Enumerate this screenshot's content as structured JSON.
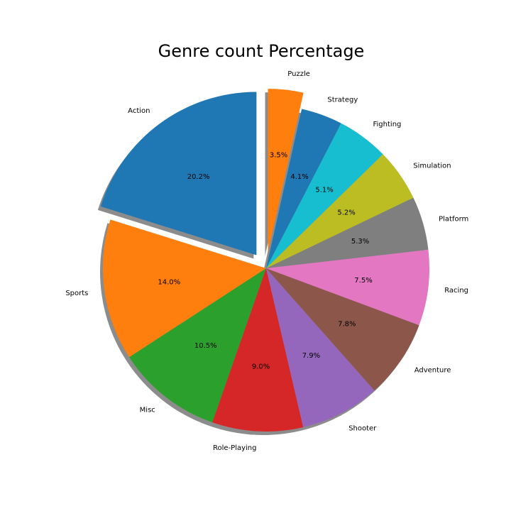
{
  "chart_data": {
    "type": "pie",
    "title": "Genre count Percentage",
    "slices": [
      {
        "label": "Action",
        "value": 20.2,
        "pct_label": "20.2%",
        "color": "#1f77b4",
        "exploded": true
      },
      {
        "label": "Sports",
        "value": 14.0,
        "pct_label": "14.0%",
        "color": "#ff7f0e",
        "exploded": false
      },
      {
        "label": "Misc",
        "value": 10.5,
        "pct_label": "10.5%",
        "color": "#2ca02c",
        "exploded": false
      },
      {
        "label": "Role-Playing",
        "value": 9.0,
        "pct_label": "9.0%",
        "color": "#d62728",
        "exploded": false
      },
      {
        "label": "Shooter",
        "value": 7.9,
        "pct_label": "7.9%",
        "color": "#9467bd",
        "exploded": false
      },
      {
        "label": "Adventure",
        "value": 7.8,
        "pct_label": "7.8%",
        "color": "#8c564b",
        "exploded": false
      },
      {
        "label": "Racing",
        "value": 7.5,
        "pct_label": "7.5%",
        "color": "#e377c2",
        "exploded": false
      },
      {
        "label": "Platform",
        "value": 5.3,
        "pct_label": "5.3%",
        "color": "#7f7f7f",
        "exploded": false
      },
      {
        "label": "Simulation",
        "value": 5.2,
        "pct_label": "5.2%",
        "color": "#bcbd22",
        "exploded": false
      },
      {
        "label": "Fighting",
        "value": 5.1,
        "pct_label": "5.1%",
        "color": "#17becf",
        "exploded": false
      },
      {
        "label": "Strategy",
        "value": 4.1,
        "pct_label": "4.1%",
        "color": "#1f77b4",
        "exploded": false
      },
      {
        "label": "Puzzle",
        "value": 3.5,
        "pct_label": "3.5%",
        "color": "#ff7f0e",
        "exploded": true
      }
    ],
    "start_angle_deg": 90,
    "direction": "counterclockwise",
    "shadow": true,
    "legend": "none"
  }
}
